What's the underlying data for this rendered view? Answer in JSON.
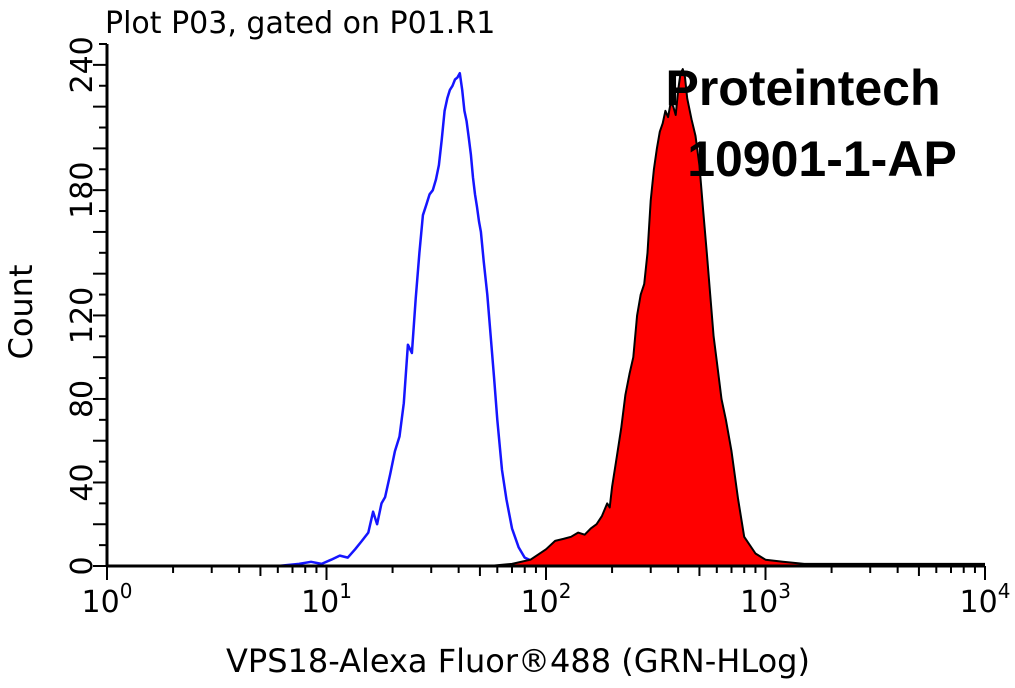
{
  "chart_data": {
    "type": "area",
    "title": "Plot P03, gated on P01.R1",
    "xlabel": "VPS18-Alexa Fluor®488 (GRN-HLog)",
    "ylabel": "Count",
    "x_scale": "log",
    "xlim": [
      1,
      10000
    ],
    "ylim": [
      0,
      250
    ],
    "x_ticks": [
      {
        "base": "10",
        "exp": "0"
      },
      {
        "base": "10",
        "exp": "1"
      },
      {
        "base": "10",
        "exp": "2"
      },
      {
        "base": "10",
        "exp": "3"
      },
      {
        "base": "10",
        "exp": "4"
      }
    ],
    "y_ticks": [
      "0",
      "40",
      "80",
      "120",
      "180",
      "240"
    ],
    "y_tick_values": [
      0,
      40,
      80,
      120,
      180,
      240
    ],
    "watermark": [
      "Proteintech",
      "10901-1-AP"
    ],
    "series": [
      {
        "color": "#1515ff",
        "fill": "none",
        "x": [
          6,
          7.5,
          8.5,
          9.5,
          10.5,
          11.5,
          12.5,
          13.5,
          14.5,
          15.5,
          16.3,
          17,
          17.8,
          18.5,
          19.5,
          20.5,
          21.5,
          22.5,
          23.5,
          24.5,
          25.5,
          26.5,
          27.5,
          28.5,
          29.5,
          30.5,
          31.5,
          32.5,
          33.5,
          34.5,
          35.5,
          36.5,
          37.5,
          38.5,
          39.5,
          40.5,
          41.5,
          42.5,
          43.5,
          44.5,
          45.5,
          46.5,
          47.5,
          48.5,
          49.5,
          50.5,
          52,
          54,
          56,
          58,
          60,
          63,
          66,
          70,
          75,
          80,
          88,
          100
        ],
        "values": [
          0,
          1,
          2,
          1,
          3,
          5,
          4,
          8,
          12,
          16,
          26,
          20,
          30,
          33,
          44,
          55,
          62,
          78,
          106,
          102,
          128,
          150,
          168,
          173,
          178,
          180,
          185,
          192,
          204,
          218,
          224,
          228,
          230,
          233,
          234,
          236,
          228,
          218,
          213,
          205,
          197,
          186,
          178,
          172,
          165,
          160,
          146,
          130,
          110,
          90,
          70,
          46,
          32,
          18,
          9,
          4,
          2,
          0
        ]
      },
      {
        "color": "#ff0000",
        "fill": "#ff0000",
        "x": [
          55,
          70,
          85,
          100,
          110,
          120,
          130,
          140,
          150,
          160,
          170,
          180,
          190,
          195,
          200,
          210,
          220,
          230,
          240,
          250,
          260,
          270,
          280,
          290,
          300,
          310,
          320,
          330,
          340,
          350,
          360,
          370,
          380,
          390,
          400,
          410,
          420,
          430,
          440,
          460,
          480,
          500,
          520,
          540,
          560,
          580,
          600,
          630,
          660,
          700,
          750,
          800,
          900,
          1000,
          1200,
          1500,
          2000,
          3000,
          5000,
          10000
        ],
        "values": [
          0,
          1,
          3,
          8,
          12,
          13,
          14,
          16,
          15,
          18,
          20,
          24,
          30,
          28,
          38,
          52,
          66,
          82,
          92,
          100,
          120,
          130,
          135,
          150,
          175,
          190,
          200,
          208,
          212,
          218,
          215,
          222,
          220,
          216,
          228,
          236,
          238,
          234,
          224,
          214,
          206,
          192,
          170,
          150,
          130,
          110,
          98,
          80,
          70,
          55,
          32,
          14,
          6,
          3,
          2,
          1,
          1,
          1,
          1,
          1
        ]
      }
    ]
  }
}
